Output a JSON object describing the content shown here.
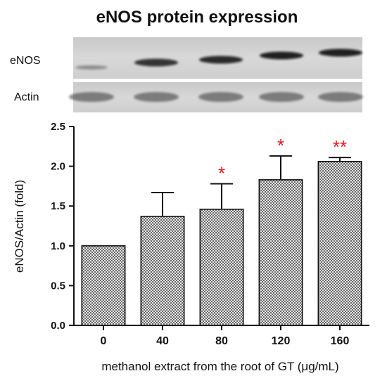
{
  "chart_data": {
    "type": "bar",
    "title": "eNOS protein expression",
    "xlabel": "methanol extract from the root of GT (μg/mL)",
    "ylabel": "eNOS/Actin (fold)",
    "categories": [
      "0",
      "40",
      "80",
      "120",
      "160"
    ],
    "values": [
      1.0,
      1.37,
      1.46,
      1.83,
      2.06
    ],
    "error_upper": [
      0.0,
      0.3,
      0.32,
      0.3,
      0.05
    ],
    "significance": [
      "",
      "",
      "*",
      "*",
      "**"
    ],
    "ylim": [
      0,
      2.5
    ],
    "yticks": [
      "0.0",
      "0.5",
      "1.0",
      "1.5",
      "2.0",
      "2.5"
    ],
    "blot_labels": [
      "eNOS",
      "Actin"
    ],
    "band_intensity": {
      "eNOS": [
        0.35,
        0.8,
        0.85,
        0.9,
        0.9
      ],
      "Actin": [
        0.55,
        0.55,
        0.55,
        0.55,
        0.55
      ]
    },
    "bar_fill": "checkered gray",
    "significance_color": "#e0191e",
    "grid": false
  }
}
